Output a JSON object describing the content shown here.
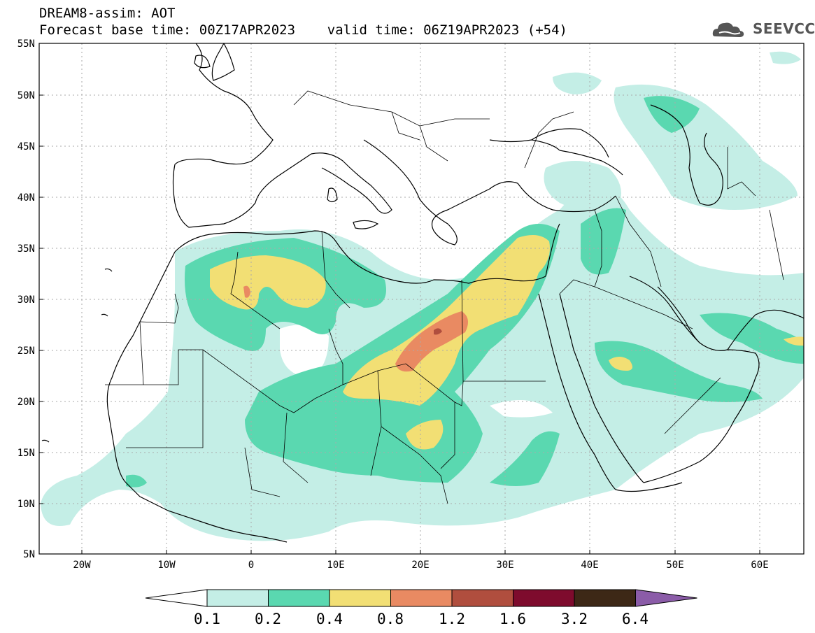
{
  "header": {
    "line1": "DREAM8-assim: AOT",
    "line2": "Forecast base time: 00Z17APR2023    valid time: 06Z19APR2023 (+54)"
  },
  "logo": {
    "text": "SEEVCCC",
    "icon": "cloud-icon"
  },
  "map": {
    "lon_range": [
      -25,
      65
    ],
    "lat_range": [
      5,
      55
    ],
    "lat_labels": [
      "55N",
      "50N",
      "45N",
      "40N",
      "35N",
      "30N",
      "25N",
      "20N",
      "15N",
      "10N",
      "5N"
    ],
    "lon_labels": [
      "20W",
      "10W",
      "0",
      "10E",
      "20E",
      "30E",
      "40E",
      "50E",
      "60E"
    ],
    "gridlines": true
  },
  "colorbar": {
    "labels": [
      "0.1",
      "0.2",
      "0.4",
      "0.8",
      "1.2",
      "1.6",
      "3.2",
      "6.4"
    ],
    "colors": [
      "#ffffff",
      "#c4eee6",
      "#5ad8b0",
      "#f2df74",
      "#e98a62",
      "#b04e3e",
      "#7e0b2d",
      "#3d2816",
      "#8b5ca8"
    ]
  }
}
